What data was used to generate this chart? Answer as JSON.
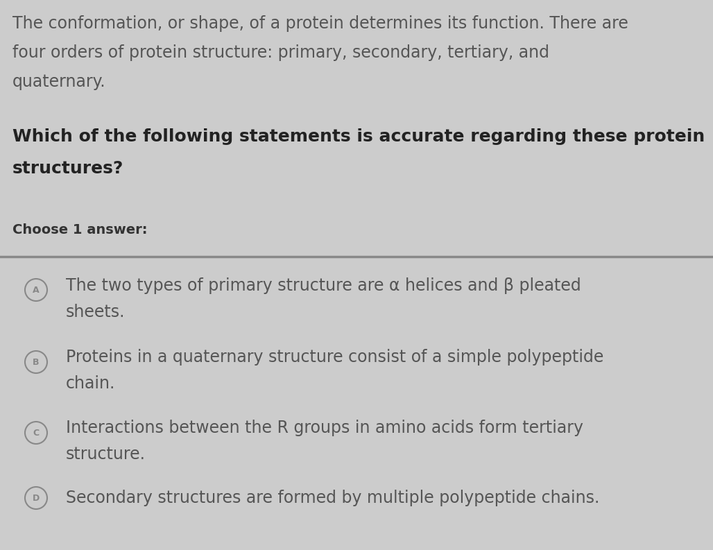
{
  "background_color": "#cccccc",
  "passage_text_lines": [
    "The conformation, or shape, of a protein determines its function. There are",
    "four orders of protein structure: primary, secondary, tertiary, and",
    "quaternary."
  ],
  "question_text_lines": [
    "Which of the following statements is accurate regarding these protein",
    "structures?"
  ],
  "choose_label": "Choose 1 answer:",
  "options": [
    {
      "letter": "A",
      "text_lines": [
        "The two types of primary structure are α helices and β pleated",
        "sheets."
      ]
    },
    {
      "letter": "B",
      "text_lines": [
        "Proteins in a quaternary structure consist of a simple polypeptide",
        "chain."
      ]
    },
    {
      "letter": "C",
      "text_lines": [
        "Interactions between the R groups in amino acids form tertiary",
        "structure."
      ]
    },
    {
      "letter": "D",
      "text_lines": [
        "Secondary structures are formed by multiple polypeptide chains."
      ]
    }
  ],
  "passage_fontsize": 17,
  "question_fontsize": 18,
  "choose_fontsize": 14,
  "option_fontsize": 17,
  "passage_color": "#555555",
  "question_color": "#222222",
  "choose_color": "#333333",
  "option_color": "#555555",
  "circle_edgecolor": "#888888",
  "circle_letter_color": "#888888",
  "separator_color": "#888888"
}
